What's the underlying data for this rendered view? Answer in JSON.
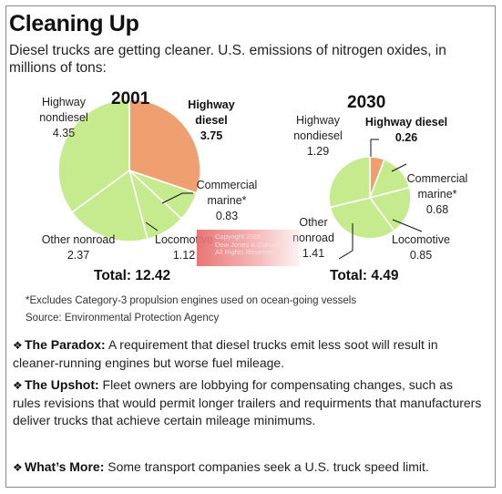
{
  "title": "Cleaning Up",
  "subtitle": "Diesel trucks are getting cleaner. U.S. emissions of nitrogen oxides, in millions of tons:",
  "colors": {
    "highway_diesel": "#f0a070",
    "others": "#c6eb8e",
    "edge": "#ffffff",
    "leader": "#111111"
  },
  "chart_data": [
    {
      "type": "pie",
      "year": "2001",
      "total": "Total: 12.42",
      "slices": [
        {
          "name": "Highway diesel",
          "value": 3.75,
          "name_lines": [
            "Highway",
            "diesel"
          ],
          "bold": true
        },
        {
          "name": "Commercial marine*",
          "value": 0.83,
          "name_lines": [
            "Commercial",
            "marine*"
          ]
        },
        {
          "name": "Locomotive",
          "value": 1.12,
          "name_lines": [
            "Locomotive"
          ]
        },
        {
          "name": "Other nonroad",
          "value": 2.37,
          "name_lines": [
            "Other nonroad"
          ]
        },
        {
          "name": "Highway nondiesel",
          "value": 4.35,
          "name_lines": [
            "Highway",
            "nondiesel"
          ]
        }
      ]
    },
    {
      "type": "pie",
      "year": "2030",
      "total": "Total: 4.49",
      "slices": [
        {
          "name": "Highway diesel",
          "value": 0.26,
          "name_lines": [
            "Highway diesel"
          ],
          "bold": true
        },
        {
          "name": "Commercial marine*",
          "value": 0.68,
          "name_lines": [
            "Commercial",
            "marine*"
          ]
        },
        {
          "name": "Locomotive",
          "value": 0.85,
          "name_lines": [
            "Locomotive"
          ]
        },
        {
          "name": "Other nonroad",
          "value": 1.41,
          "name_lines": [
            "Other",
            "nonroad"
          ]
        },
        {
          "name": "Highway nondiesel",
          "value": 1.29,
          "name_lines": [
            "Highway",
            "nondiesel"
          ]
        }
      ]
    }
  ],
  "footnote": "*Excludes Category-3 propulsion engines used on ocean-going vessels",
  "source": "Source: Environmental Protection Agency",
  "watermark": [
    "Copyright 2006",
    "Dow Jones & Company",
    "All Rights Reserved"
  ],
  "bullets": [
    {
      "symbol": "❖",
      "heading": "The Paradox:",
      "text": " A requirement that diesel trucks emit less soot will result in cleaner-running engines but worse fuel mileage."
    },
    {
      "symbol": "❖",
      "heading": "The Upshot:",
      "text": " Fleet owners are lobbying for compensating changes, such as rules revisions that would permit longer trailers and requirments that manufacturers deliver trucks that achieve certain mileage minimums."
    },
    {
      "symbol": "❖",
      "heading": "What’s More:",
      "text": " Some transport companies seek a U.S. truck speed limit."
    }
  ]
}
